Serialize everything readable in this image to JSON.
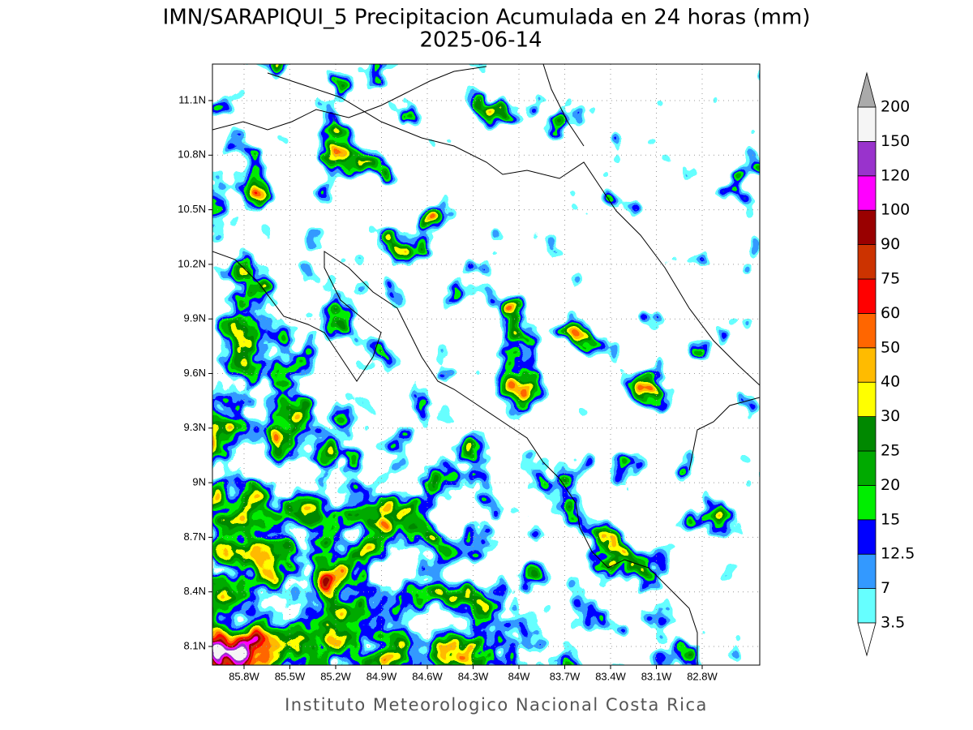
{
  "title": "IMN/SARAPIQUI_5 Precipitacion Acumulada en 24 horas (mm)",
  "subtitle": "2025-06-14",
  "footer": "Instituto Meteorologico Nacional Costa Rica",
  "lon_ticks": [
    "85.8W",
    "85.5W",
    "85.2W",
    "84.9W",
    "84.6W",
    "84.3W",
    "84W",
    "83.7W",
    "83.4W",
    "83.1W",
    "82.8W"
  ],
  "lat_ticks": [
    "8.1N",
    "8.4N",
    "8.7N",
    "9N",
    "9.3N",
    "9.6N",
    "9.9N",
    "10.2N",
    "10.5N",
    "10.8N",
    "11.1N"
  ],
  "colorbar": {
    "levels": [
      3.5,
      7,
      12.5,
      15,
      20,
      25,
      30,
      40,
      50,
      60,
      75,
      90,
      100,
      120,
      150,
      200
    ],
    "colors": [
      "#66ffff",
      "#3399ff",
      "#0000ff",
      "#00ee00",
      "#00aa00",
      "#008800",
      "#ffff00",
      "#ffbb00",
      "#ff6600",
      "#ff0000",
      "#cc3300",
      "#990000",
      "#ff00ff",
      "#9933cc",
      "#f5f5f5"
    ],
    "under_color": "#ffffff",
    "over_color": "#aaaaaa"
  }
}
